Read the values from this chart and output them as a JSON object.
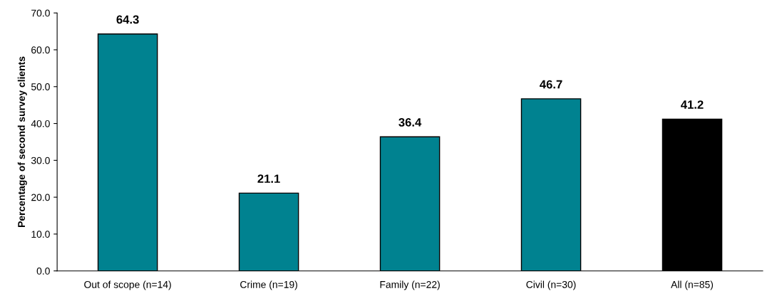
{
  "chart_data": {
    "type": "bar",
    "ylabel": "Percentage of second survey clients",
    "categories": [
      "Out of scope (n=14)",
      "Crime (n=19)",
      "Family (n=22)",
      "Civil (n=30)",
      "All (n=85)"
    ],
    "values": [
      64.3,
      21.1,
      36.4,
      46.7,
      41.2
    ],
    "colors": [
      "#008290",
      "#008290",
      "#008290",
      "#008290",
      "#000000"
    ],
    "ylim": [
      0,
      70
    ],
    "yticks": [
      {
        "value": 0,
        "label": "0.0"
      },
      {
        "value": 10,
        "label": "10.0"
      },
      {
        "value": 20,
        "label": "20.0"
      },
      {
        "value": 30,
        "label": "30.0"
      },
      {
        "value": 40,
        "label": "40.0"
      },
      {
        "value": 50,
        "label": "50.0"
      },
      {
        "value": 60,
        "label": "60.0"
      },
      {
        "value": 70,
        "label": "70.0"
      }
    ],
    "data_labels": true,
    "grid": false,
    "legend": false
  }
}
